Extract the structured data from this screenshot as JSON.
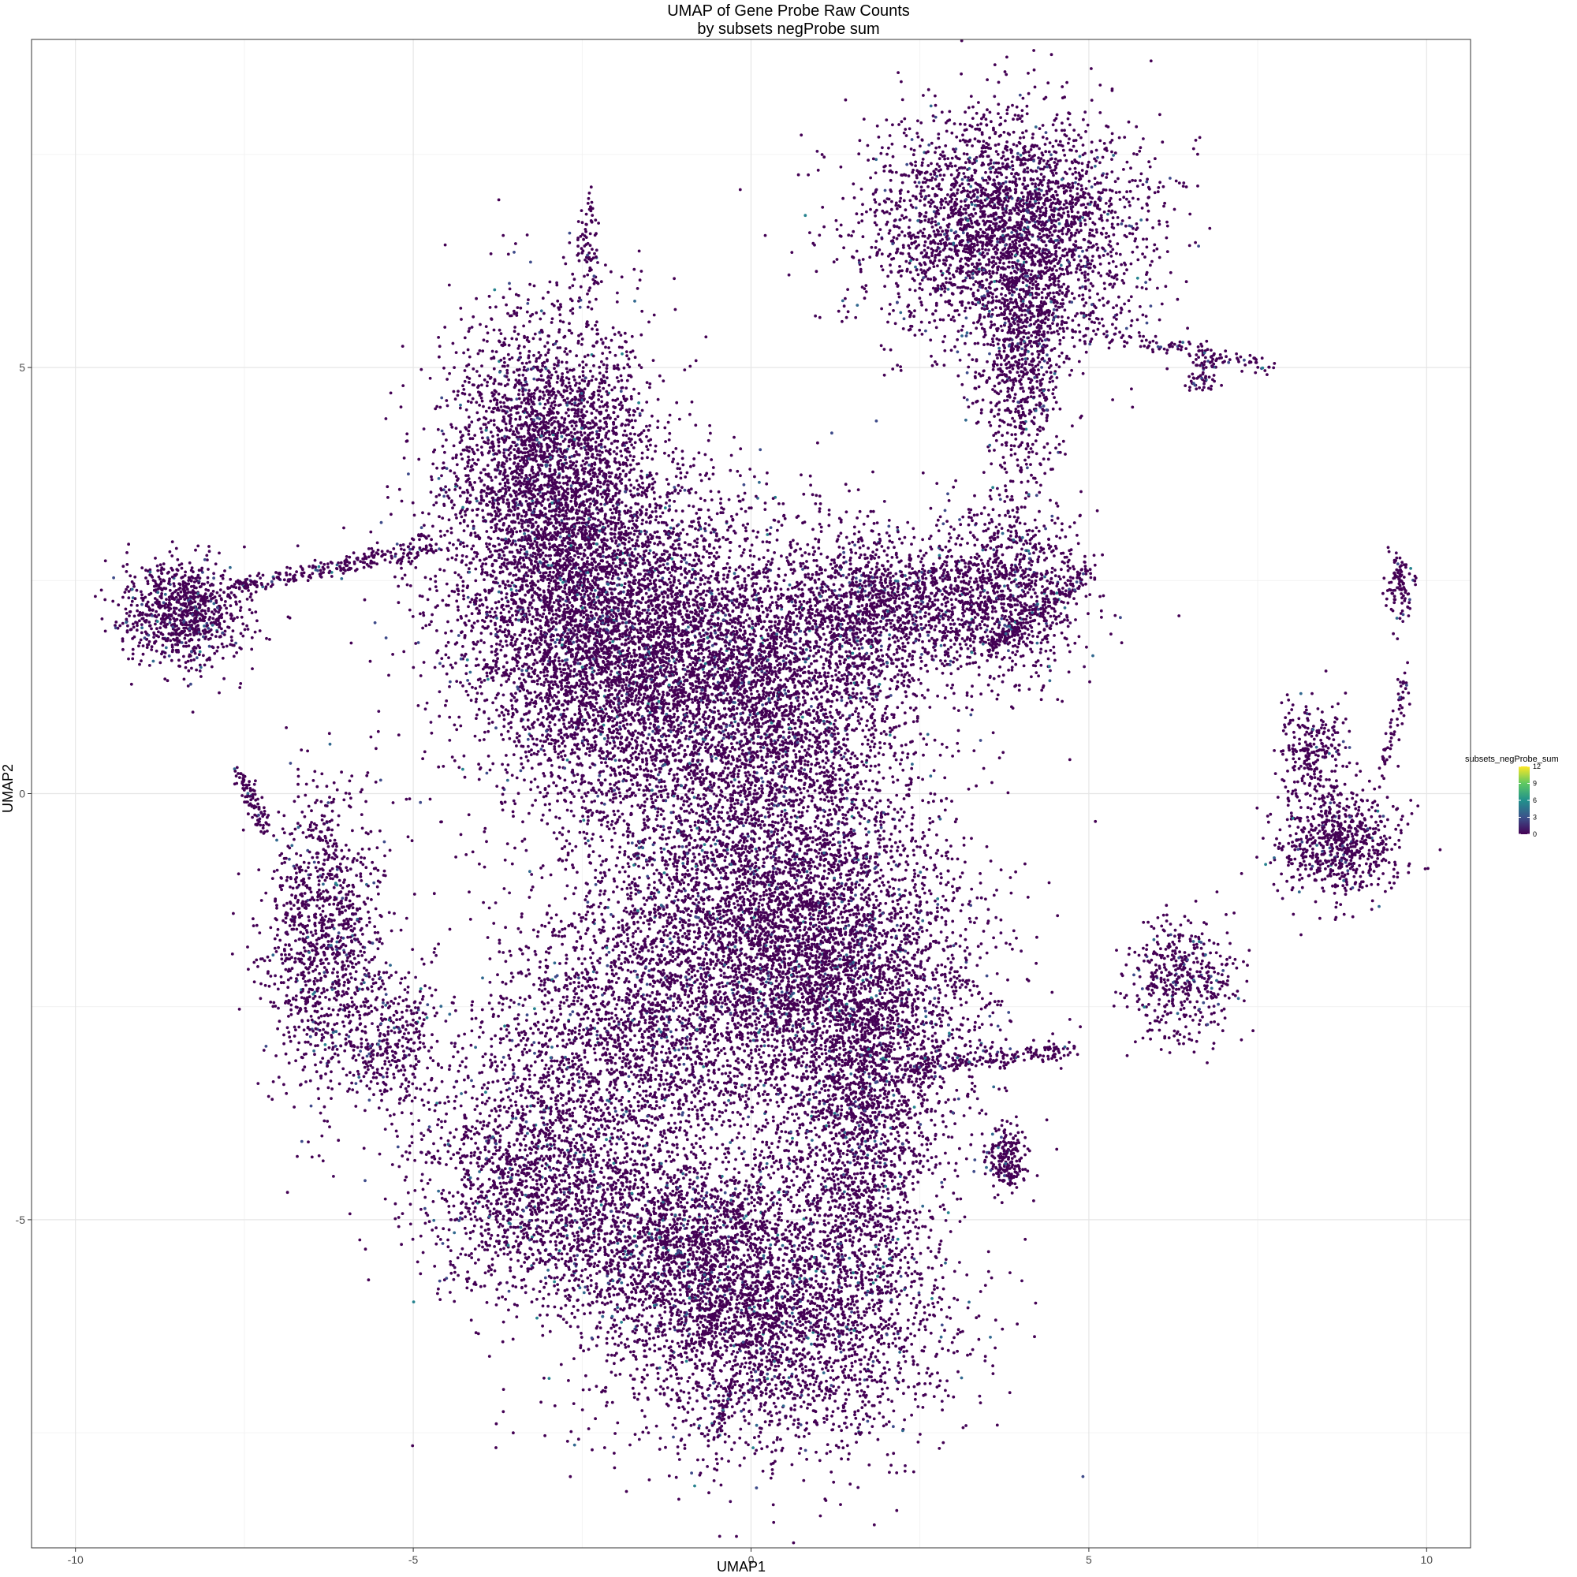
{
  "chart_data": {
    "type": "scatter",
    "title": "UMAP of Gene Probe Raw Counts",
    "subtitle": "by subsets negProbe sum",
    "xlabel": "UMAP1",
    "ylabel": "UMAP2",
    "xlim": [
      -10.65,
      10.65
    ],
    "ylim": [
      -8.85,
      8.85
    ],
    "x_ticks": [
      -10,
      -5,
      0,
      5,
      10
    ],
    "x_tick_labels": [
      "-10",
      "-5",
      "0",
      "5",
      "10"
    ],
    "y_ticks": [
      -5,
      0,
      5
    ],
    "y_tick_labels": [
      "-5",
      "0",
      "5"
    ],
    "grid": true,
    "background": "#ffffff",
    "legend": {
      "title": "subsets_negProbe_sum",
      "placement": "right",
      "min": 0,
      "max": 12,
      "ticks": [
        0,
        3,
        6,
        9,
        12
      ],
      "tick_labels": [
        "0",
        "3",
        "6",
        "9",
        "12"
      ],
      "colors": [
        "#440154",
        "#3b528b",
        "#21918c",
        "#5ec962",
        "#fde725"
      ]
    },
    "dominant_point_color": "#440154",
    "clusters": [
      {
        "name": "",
        "center": [
          -3.0,
          4.0
        ],
        "spread": [
          0.75,
          0.85
        ],
        "n": 2600
      },
      {
        "name": "",
        "center": [
          -2.6,
          2.2
        ],
        "spread": [
          1.0,
          1.0
        ],
        "n": 3000
      },
      {
        "name": "",
        "center": [
          -1.5,
          1.5
        ],
        "spread": [
          1.1,
          1.0
        ],
        "n": 3200
      },
      {
        "name": "",
        "center": [
          0.5,
          1.3
        ],
        "spread": [
          1.0,
          0.9
        ],
        "n": 2400
      },
      {
        "name": "",
        "center": [
          2.0,
          2.2
        ],
        "spread": [
          0.8,
          0.4
        ],
        "n": 1200
      },
      {
        "name": "",
        "center": [
          3.8,
          2.4
        ],
        "spread": [
          0.6,
          0.5
        ],
        "n": 1000
      },
      {
        "name": "",
        "center": [
          0.3,
          -1.2
        ],
        "spread": [
          1.3,
          1.0
        ],
        "n": 4000
      },
      {
        "name": "",
        "center": [
          1.5,
          -2.6
        ],
        "spread": [
          1.0,
          0.8
        ],
        "n": 2200
      },
      {
        "name": "",
        "center": [
          -1.8,
          -2.8
        ],
        "spread": [
          1.1,
          0.8
        ],
        "n": 2000
      },
      {
        "name": "",
        "center": [
          -3.2,
          -4.5
        ],
        "spread": [
          0.9,
          0.7
        ],
        "n": 1800
      },
      {
        "name": "",
        "center": [
          -1.0,
          -5.3
        ],
        "spread": [
          0.9,
          0.6
        ],
        "n": 1600
      },
      {
        "name": "",
        "center": [
          0.3,
          -6.2
        ],
        "spread": [
          1.3,
          0.8
        ],
        "n": 3000
      },
      {
        "name": "",
        "center": [
          1.6,
          -4.2
        ],
        "spread": [
          0.6,
          1.0
        ],
        "n": 1400
      },
      {
        "name": "",
        "center": [
          3.8,
          6.6
        ],
        "spread": [
          1.0,
          0.7
        ],
        "n": 3200
      },
      {
        "name": "",
        "center": [
          4.0,
          5.0
        ],
        "spread": [
          0.3,
          0.7
        ],
        "n": 700
      },
      {
        "name": "",
        "center": [
          -8.4,
          2.1
        ],
        "spread": [
          0.45,
          0.3
        ],
        "n": 900
      },
      {
        "name": "",
        "center": [
          -6.3,
          -1.7
        ],
        "spread": [
          0.45,
          0.9
        ],
        "n": 1200
      },
      {
        "name": "",
        "center": [
          -5.3,
          -2.9
        ],
        "spread": [
          0.35,
          0.4
        ],
        "n": 350
      },
      {
        "name": "",
        "center": [
          8.7,
          -0.6
        ],
        "spread": [
          0.45,
          0.3
        ],
        "n": 700
      },
      {
        "name": "",
        "center": [
          8.3,
          0.5
        ],
        "spread": [
          0.25,
          0.3
        ],
        "n": 250
      },
      {
        "name": "",
        "center": [
          6.4,
          -2.2
        ],
        "spread": [
          0.4,
          0.35
        ],
        "n": 450
      },
      {
        "name": "",
        "center": [
          3.8,
          -4.3
        ],
        "spread": [
          0.15,
          0.18
        ],
        "n": 200
      },
      {
        "name": "",
        "center": [
          9.6,
          2.4
        ],
        "spread": [
          0.1,
          0.2
        ],
        "n": 100
      },
      {
        "name": "",
        "center": [
          -2.4,
          6.4
        ],
        "spread": [
          0.1,
          0.3
        ],
        "n": 80
      },
      {
        "name": "",
        "center": [
          6.7,
          4.9
        ],
        "spread": [
          0.12,
          0.1
        ],
        "n": 60
      }
    ],
    "filaments": [
      {
        "from": [
          -7.8,
          2.4
        ],
        "to": [
          -4.7,
          2.9
        ],
        "n": 260
      },
      {
        "from": [
          -7.6,
          0.3
        ],
        "to": [
          -7.2,
          -0.4
        ],
        "n": 90
      },
      {
        "from": [
          4.6,
          5.5
        ],
        "to": [
          7.7,
          5.0
        ],
        "n": 140
      },
      {
        "from": [
          3.5,
          1.7
        ],
        "to": [
          5.0,
          2.6
        ],
        "n": 200
      },
      {
        "from": [
          2.3,
          -3.2
        ],
        "to": [
          4.8,
          -3.0
        ],
        "n": 180
      },
      {
        "from": [
          9.3,
          0.1
        ],
        "to": [
          9.7,
          1.4
        ],
        "n": 60
      },
      {
        "from": [
          -0.5,
          -7.5
        ],
        "to": [
          -0.3,
          -6.9
        ],
        "n": 50
      }
    ]
  }
}
